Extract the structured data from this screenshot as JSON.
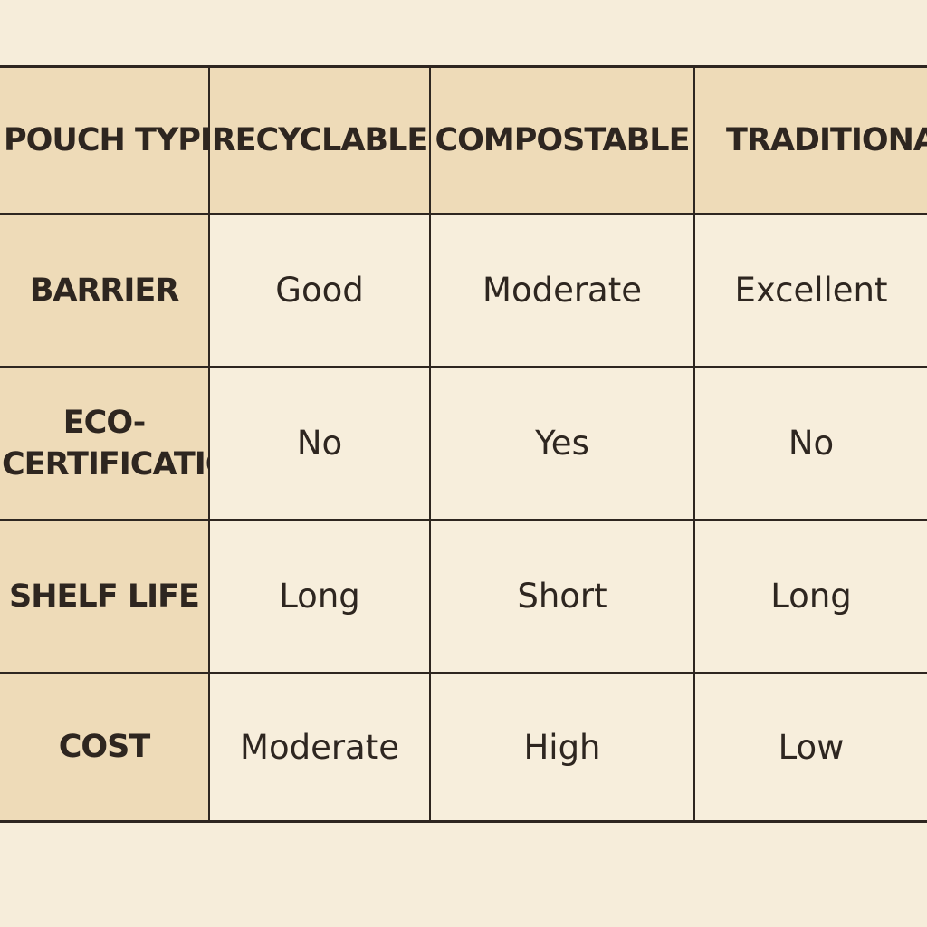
{
  "table": {
    "header": {
      "label": "POUCH TYPE",
      "columns": [
        "RECYCLABLE",
        "COMPOSTABLE",
        "TRADITIONAL"
      ]
    },
    "rows": [
      {
        "label": "BARRIER",
        "values": [
          "Good",
          "Moderate",
          "Excellent"
        ]
      },
      {
        "label_line1": "ECO-",
        "label_line2": "CERTIFICATION",
        "values": [
          "No",
          "Yes",
          "No"
        ]
      },
      {
        "label": "SHELF LIFE",
        "values": [
          "Long",
          "Short",
          "Long"
        ]
      },
      {
        "label": "COST",
        "values": [
          "Moderate",
          "High",
          "Low"
        ]
      }
    ]
  },
  "colors": {
    "background": "#f6edda",
    "header_fill": "#eedbb8",
    "cell_fill": "#f7eedc",
    "ink": "#2e2620"
  }
}
